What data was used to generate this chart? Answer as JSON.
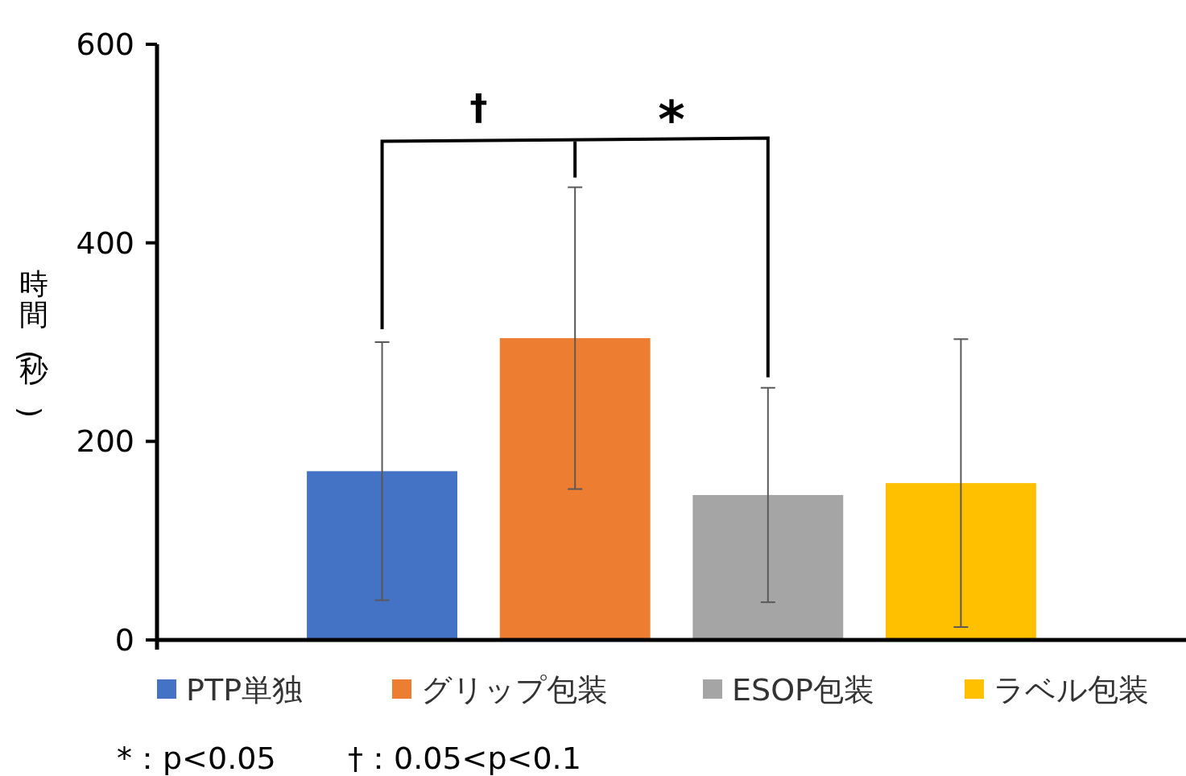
{
  "chart_data": {
    "type": "bar",
    "ylabel": "時間(秒)",
    "categories": [
      null
    ],
    "series": [
      {
        "name": "PTP単独",
        "color": "#4472c4",
        "values": [
          170
        ],
        "errors": [
          130
        ]
      },
      {
        "name": "グリップ包装",
        "color": "#ed7d31",
        "values": [
          304
        ],
        "errors": [
          152
        ]
      },
      {
        "name": "ESOP包装",
        "color": "#a5a5a5",
        "values": [
          146
        ],
        "errors": [
          108
        ]
      },
      {
        "name": "ラベル包装",
        "color": "#ffc000",
        "values": [
          158
        ],
        "errors": [
          145
        ]
      }
    ],
    "ylim": [
      0,
      600
    ],
    "yticks": [
      0,
      200,
      400,
      600
    ],
    "legend": "bottom",
    "annotations": [
      "†",
      "*",
      "*：p<0.05",
      "†：0.05<p<0.1"
    ]
  }
}
